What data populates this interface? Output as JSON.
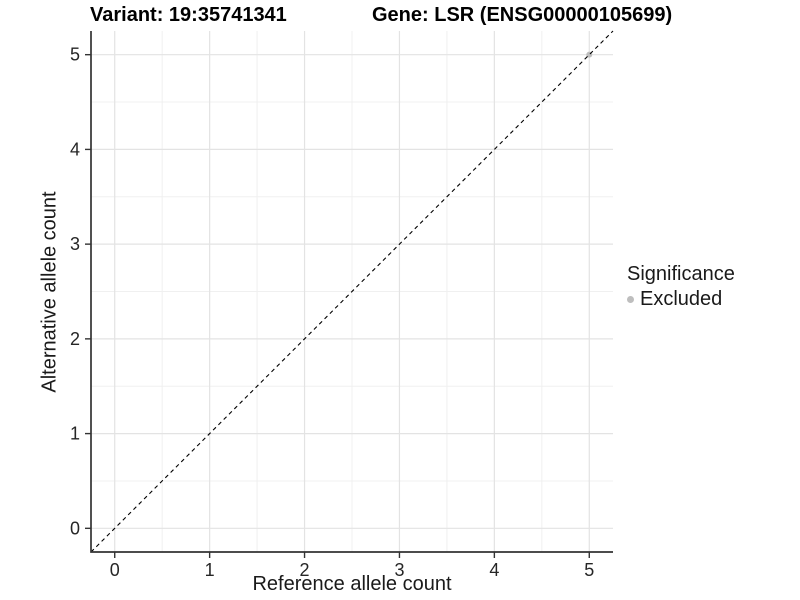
{
  "chart_data": {
    "type": "scatter",
    "titles": {
      "left": "Variant: 19:35741341",
      "right": "Gene: LSR (ENSG00000105699)"
    },
    "xlabel": "Reference allele count",
    "ylabel": "Alternative allele count",
    "xlim": [
      -0.25,
      5.25
    ],
    "ylim": [
      -0.25,
      5.25
    ],
    "xticks": [
      0,
      1,
      2,
      3,
      4,
      5
    ],
    "yticks": [
      0,
      1,
      2,
      3,
      4,
      5
    ],
    "grid": "major+minor",
    "reference_line": {
      "kind": "identity-abline",
      "slope": 1,
      "intercept": 0,
      "style": "dashed",
      "color": "#000000"
    },
    "series": [
      {
        "name": "Excluded",
        "color": "#bebebe",
        "marker": "circle",
        "points": [
          {
            "x": 5,
            "y": 5
          }
        ]
      }
    ],
    "legend": {
      "title": "Significance",
      "position": "right",
      "entries": [
        {
          "label": "Excluded",
          "color": "#bebebe",
          "marker": "circle"
        }
      ]
    }
  }
}
